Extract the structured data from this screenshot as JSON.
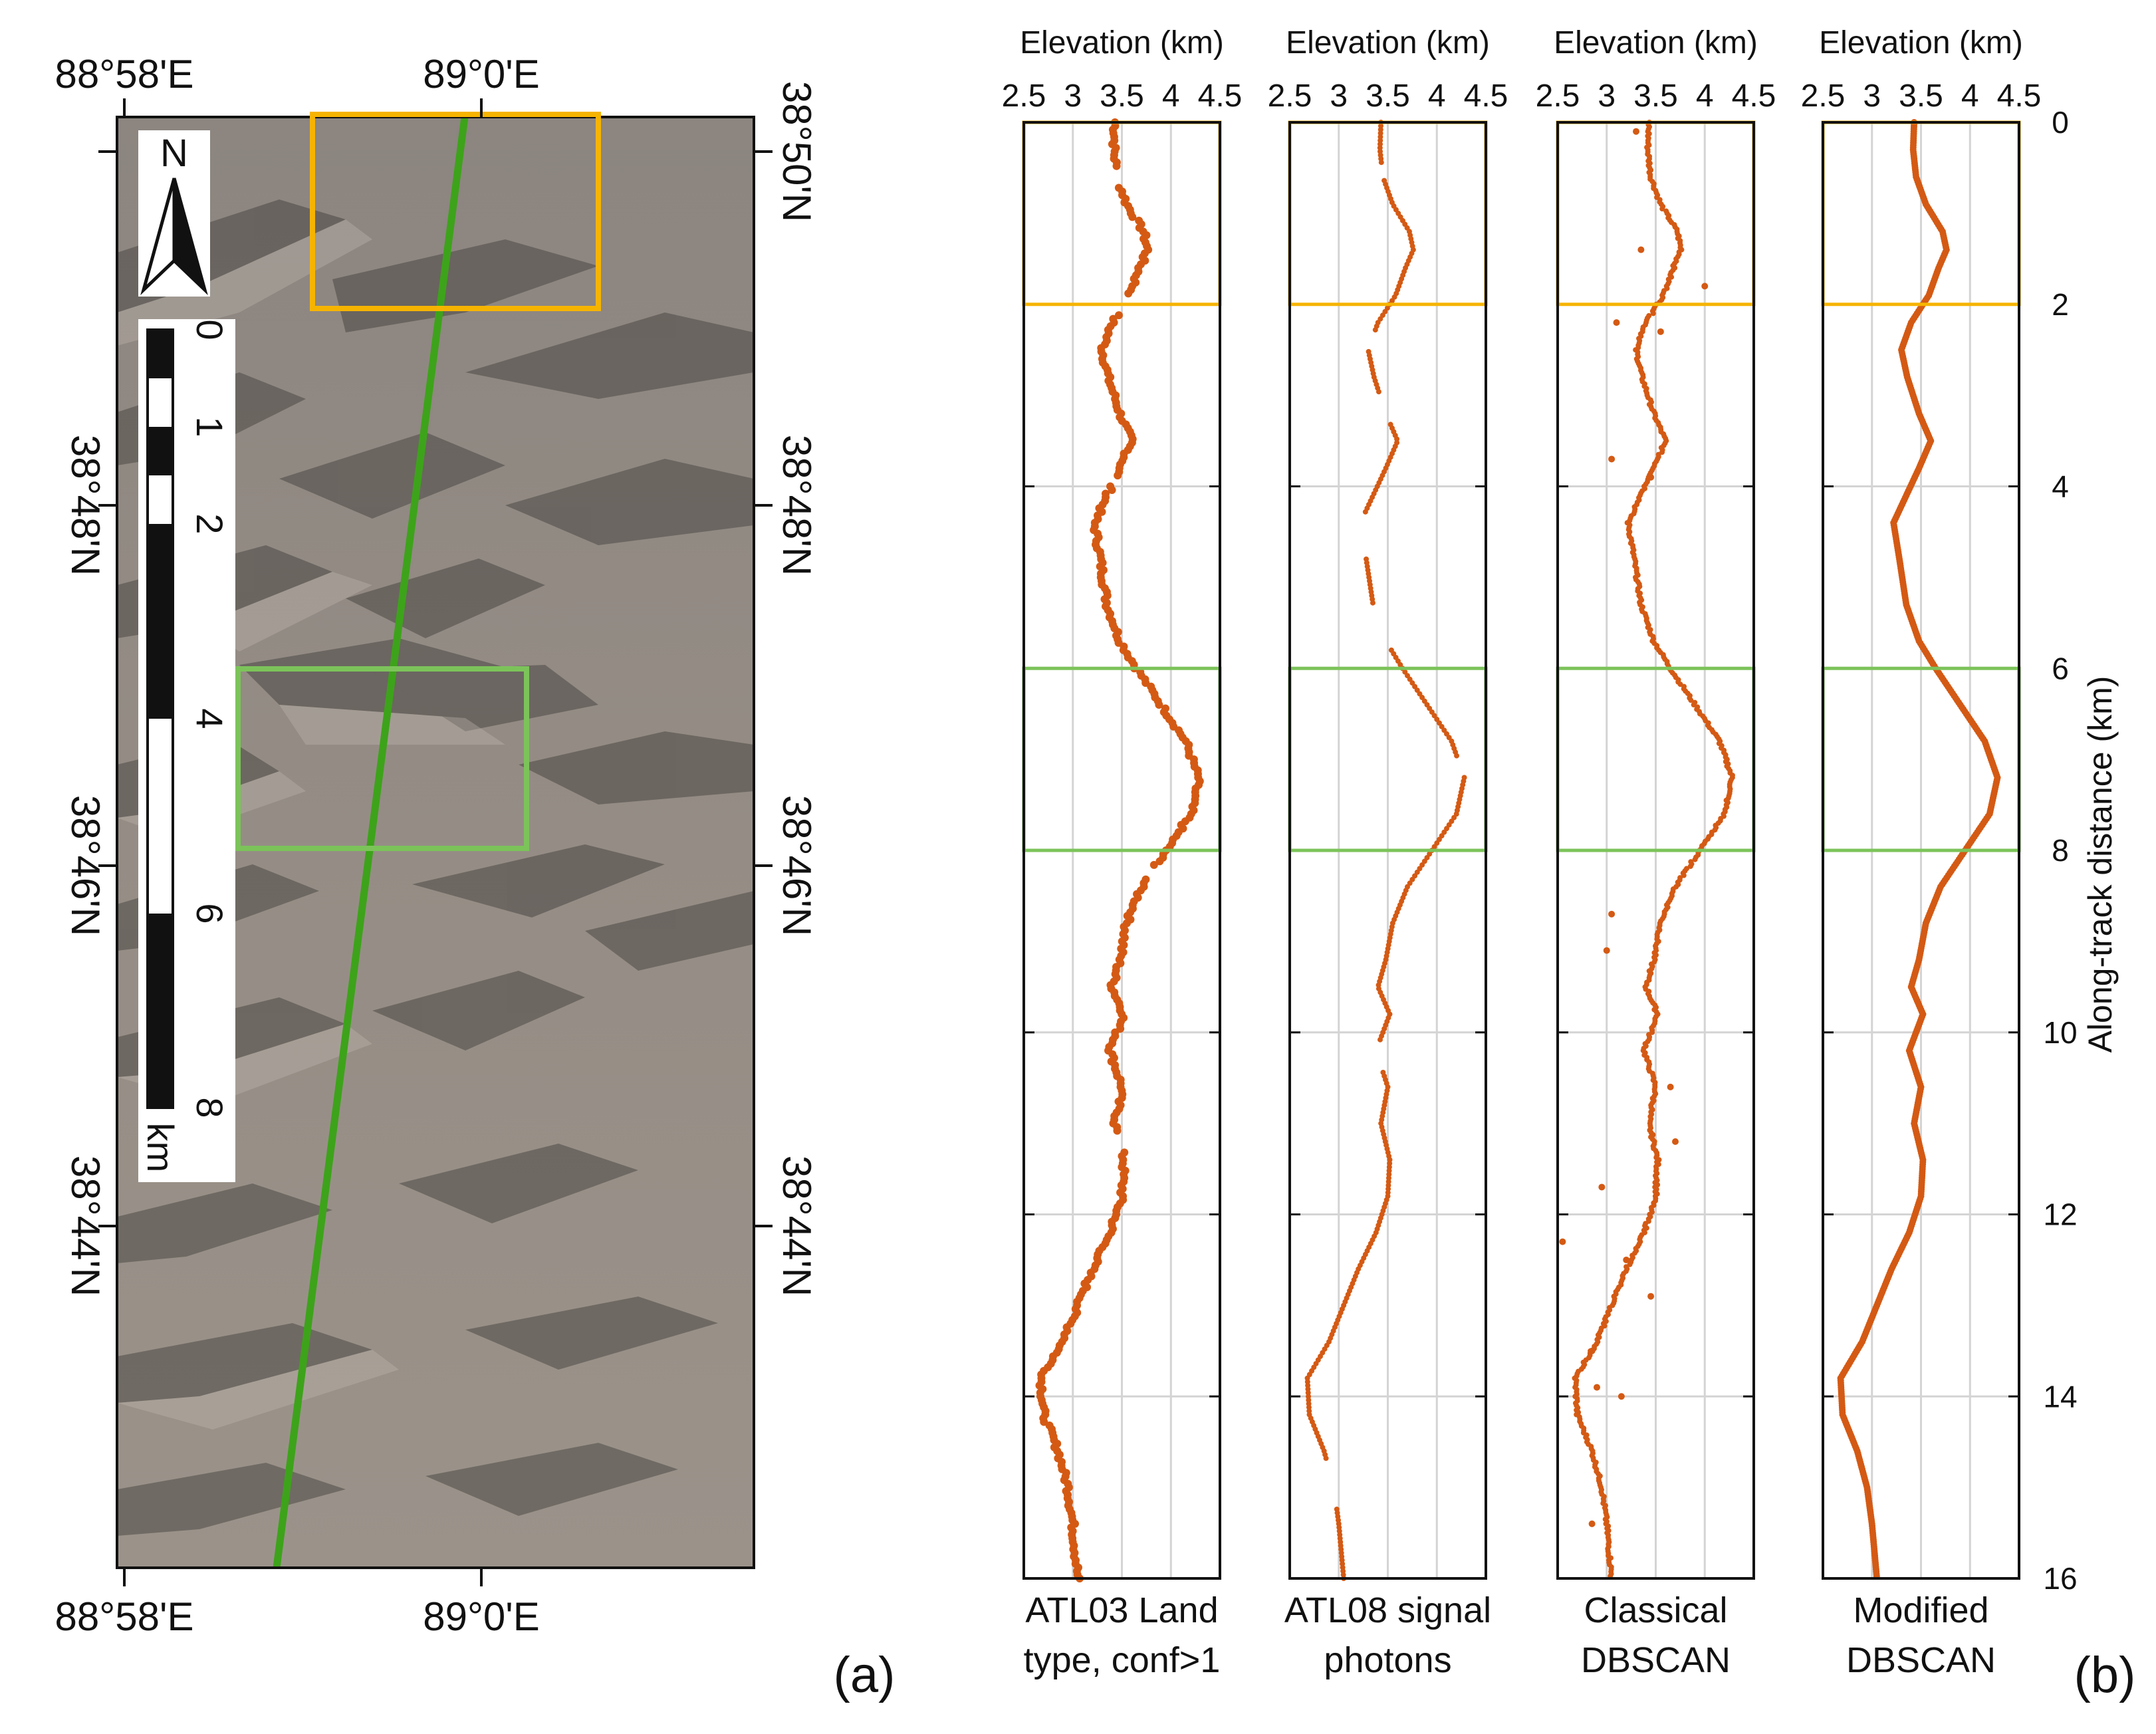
{
  "panel_a": {
    "label": "(a)",
    "lon_ticks": [
      "88°58'E",
      "89°0'E"
    ],
    "lat_ticks": [
      "38°50'N",
      "38°48'N",
      "38°46'N",
      "38°44'N"
    ],
    "north_arrow": "N",
    "scalebar": {
      "ticks": [
        "0",
        "1",
        "2",
        "4",
        "6",
        "8"
      ],
      "unit": "km"
    },
    "colors": {
      "track": "#3da31a",
      "box_top": "#f6b400",
      "box_mid": "#7cc35a",
      "terrain": "#8f877f"
    }
  },
  "panel_b": {
    "label": "(b)"
  },
  "chart_data": {
    "type": "scatter",
    "orientation": "vertical-profiles",
    "xlabel": "Elevation (km)",
    "ylabel": "Along-track distance (km)",
    "xlim": [
      2.5,
      4.5
    ],
    "ylim": [
      0,
      16
    ],
    "x_ticks": [
      "2.5",
      "3",
      "3.5",
      "4",
      "4.5"
    ],
    "y_ticks": [
      "0",
      "2",
      "4",
      "6",
      "8",
      "10",
      "12",
      "14",
      "16"
    ],
    "highlight_ranges": [
      {
        "from": 0,
        "to": 2,
        "color": "#f6b400"
      },
      {
        "from": 6,
        "to": 8,
        "color": "#7cc35a"
      }
    ],
    "point_color": "#d45a14",
    "profile": [
      [
        0.0,
        3.43
      ],
      [
        0.3,
        3.42
      ],
      [
        0.6,
        3.45
      ],
      [
        0.9,
        3.55
      ],
      [
        1.2,
        3.72
      ],
      [
        1.4,
        3.76
      ],
      [
        1.6,
        3.68
      ],
      [
        1.9,
        3.58
      ],
      [
        2.2,
        3.4
      ],
      [
        2.5,
        3.3
      ],
      [
        2.8,
        3.36
      ],
      [
        3.2,
        3.48
      ],
      [
        3.5,
        3.6
      ],
      [
        3.8,
        3.48
      ],
      [
        4.1,
        3.35
      ],
      [
        4.4,
        3.22
      ],
      [
        4.8,
        3.28
      ],
      [
        5.3,
        3.35
      ],
      [
        5.7,
        3.48
      ],
      [
        6.0,
        3.65
      ],
      [
        6.4,
        3.9
      ],
      [
        6.8,
        4.15
      ],
      [
        7.2,
        4.28
      ],
      [
        7.6,
        4.2
      ],
      [
        8.0,
        3.95
      ],
      [
        8.4,
        3.7
      ],
      [
        8.8,
        3.55
      ],
      [
        9.2,
        3.48
      ],
      [
        9.5,
        3.4
      ],
      [
        9.8,
        3.52
      ],
      [
        10.2,
        3.38
      ],
      [
        10.6,
        3.5
      ],
      [
        11.0,
        3.43
      ],
      [
        11.4,
        3.52
      ],
      [
        11.8,
        3.5
      ],
      [
        12.2,
        3.38
      ],
      [
        12.6,
        3.2
      ],
      [
        13.0,
        3.05
      ],
      [
        13.4,
        2.9
      ],
      [
        13.8,
        2.68
      ],
      [
        14.2,
        2.7
      ],
      [
        14.6,
        2.85
      ],
      [
        15.0,
        2.95
      ],
      [
        15.4,
        3.0
      ],
      [
        16.0,
        3.05
      ]
    ],
    "series": [
      {
        "name": "ATL03 Land type, conf>1",
        "label_line1": "ATL03 Land",
        "label_line2": "type, conf>1"
      },
      {
        "name": "ATL08 signal photons",
        "label_line1": "ATL08 signal",
        "label_line2": "photons"
      },
      {
        "name": "Classical DBSCAN",
        "label_line1": "Classical",
        "label_line2": "DBSCAN"
      },
      {
        "name": "Modified DBSCAN",
        "label_line1": "Modified",
        "label_line2": "DBSCAN"
      }
    ]
  }
}
